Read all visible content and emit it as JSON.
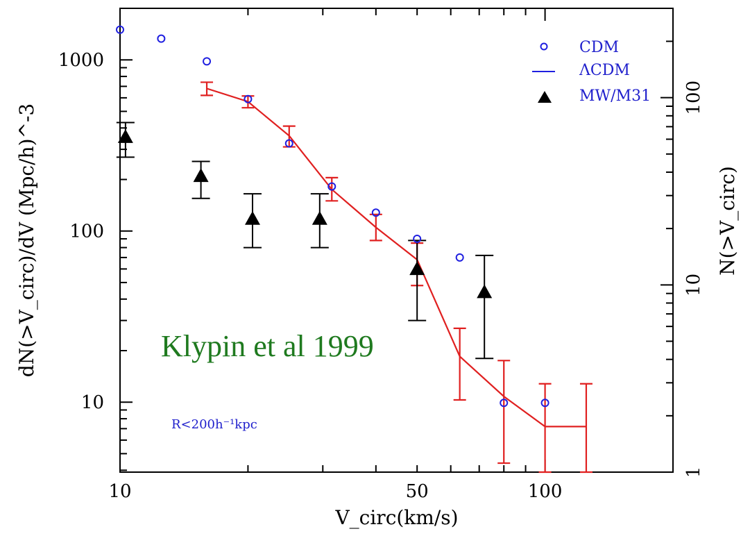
{
  "chart_data": {
    "type": "scatter",
    "title": "",
    "xlabel": "V_circ(km/s)",
    "ylabel_left": "dN(>V_circ)/dV (Mpc/h)^-3",
    "ylabel_right": "N(>V_circ)",
    "x_scale": "log",
    "y_scale": "log",
    "xlim": [
      10,
      200
    ],
    "ylim_left": [
      3.9,
      2000
    ],
    "ylim_right": [
      1,
      300
    ],
    "x_ticks": [
      {
        "value": 10,
        "label": "10"
      },
      {
        "value": 50,
        "label": "50"
      },
      {
        "value": 100,
        "label": "100"
      }
    ],
    "y_ticks_left": [
      {
        "value": 10,
        "label": "10"
      },
      {
        "value": 100,
        "label": "100"
      },
      {
        "value": 1000,
        "label": "1000"
      }
    ],
    "y_ticks_right": [
      {
        "value": 1,
        "label": "1"
      },
      {
        "value": 10,
        "label": "10"
      },
      {
        "value": 100,
        "label": "100"
      }
    ],
    "legend_position": "top-right",
    "series": [
      {
        "name": "CDM",
        "marker": "open-circle",
        "color": "#1f1fe0",
        "x": [
          10,
          12.5,
          16,
          20,
          25,
          31.5,
          40,
          50,
          63,
          80,
          100
        ],
        "y": [
          1500,
          1330,
          980,
          590,
          325,
          182,
          128,
          90,
          70,
          9.9,
          9.9
        ]
      },
      {
        "name": "ΛCDM",
        "marker": "line",
        "color": "#e02020",
        "x": [
          16,
          20,
          25,
          31.5,
          40,
          50,
          63,
          80,
          100,
          125
        ],
        "y": [
          680,
          570,
          360,
          175,
          105,
          68,
          18.5,
          10.8,
          7.2,
          7.2
        ],
        "err_low": [
          620,
          525,
          310,
          150,
          88,
          48,
          10.3,
          4.4,
          3.9,
          3.9
        ],
        "err_high": [
          740,
          615,
          410,
          205,
          125,
          85,
          27,
          17.5,
          12.8,
          12.8
        ],
        "last_bin_range": [
          100,
          125
        ]
      },
      {
        "name": "MW/M31",
        "marker": "filled-triangle",
        "color": "#000000",
        "x": [
          10.3,
          15.5,
          20.5,
          29.5,
          50,
          72
        ],
        "y": [
          355,
          210,
          118,
          118,
          60,
          44
        ],
        "err_low": [
          270,
          155,
          80,
          80,
          30,
          18
        ],
        "err_high": [
          430,
          255,
          165,
          165,
          88,
          72
        ]
      }
    ],
    "annotations": [
      {
        "text": "Klypin et al 1999",
        "color": "#1f7a1f"
      },
      {
        "text": "R<200h⁻¹kpc",
        "color": "#1f1fcc"
      }
    ]
  }
}
